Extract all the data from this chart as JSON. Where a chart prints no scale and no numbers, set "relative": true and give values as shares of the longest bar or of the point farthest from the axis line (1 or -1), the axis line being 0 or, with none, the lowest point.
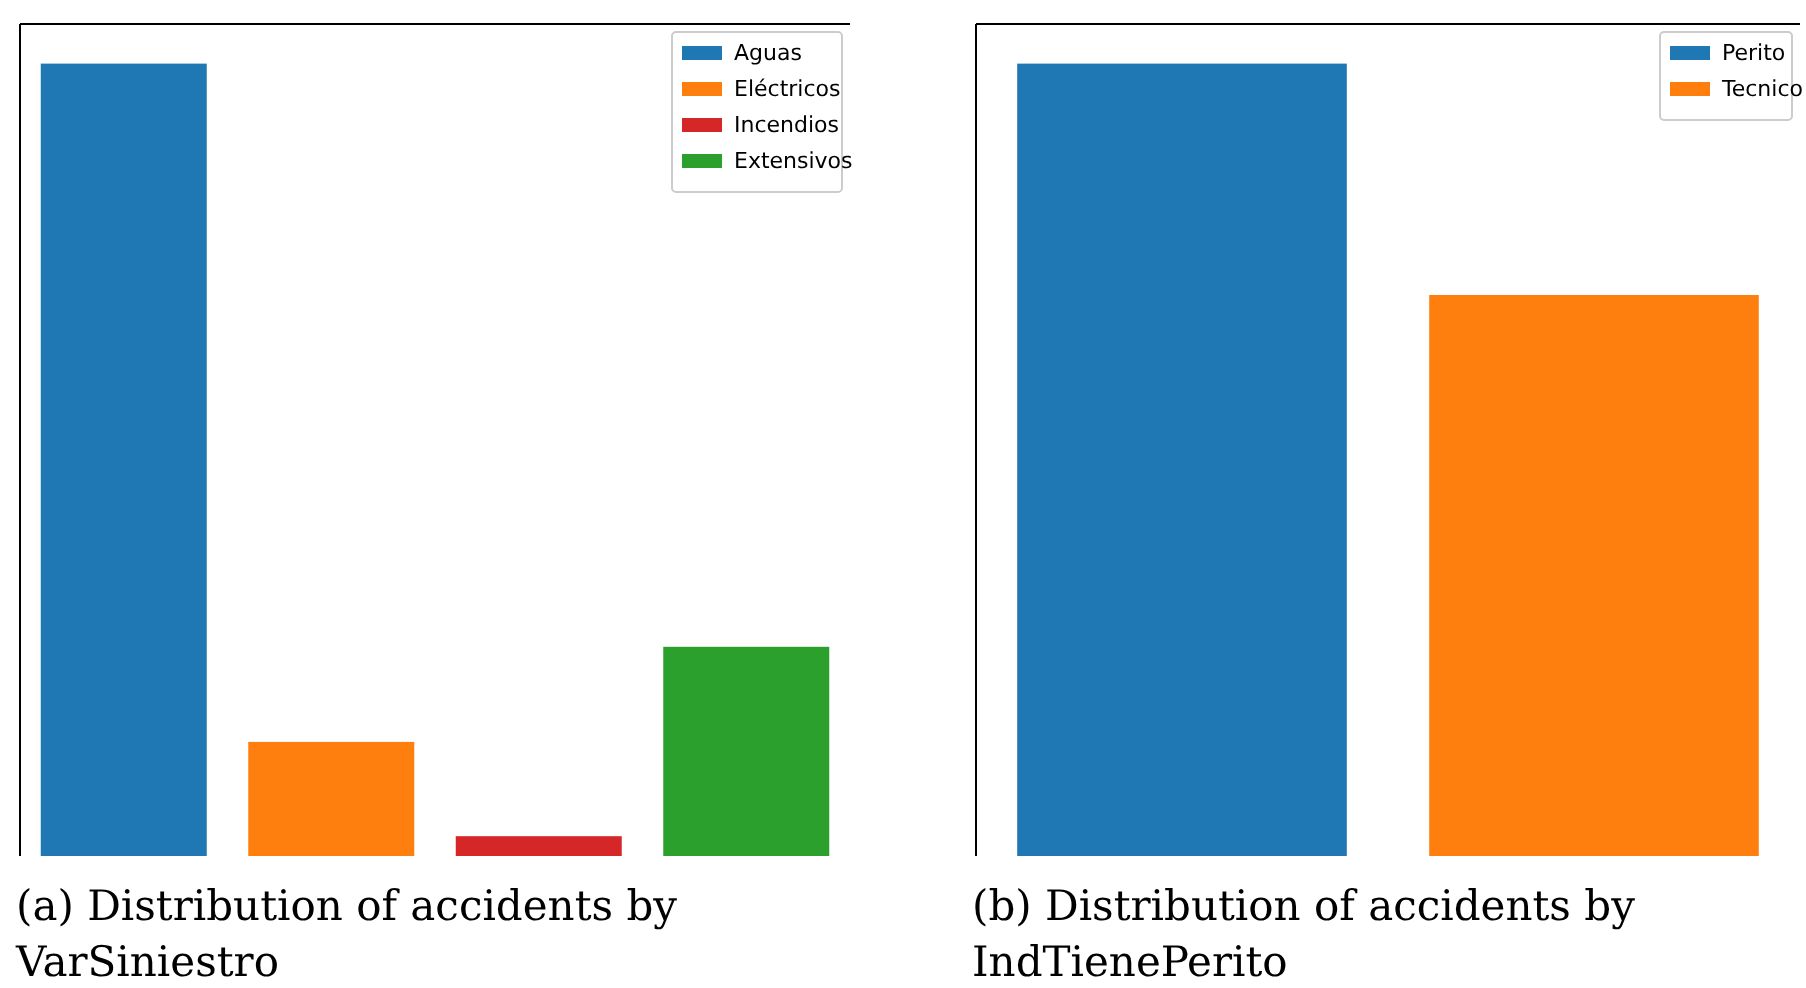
{
  "chart_data": [
    {
      "type": "bar",
      "relative": true,
      "title": "(a) Distribution of accidents by VarSiniestro",
      "categories": [
        null
      ],
      "legend": "top right",
      "series": [
        {
          "name": "Aguas",
          "color": "#1f77b4",
          "values": [
            1
          ]
        },
        {
          "name": "Eléctricos",
          "color": "#ff7f0e",
          "values": [
            0.144
          ]
        },
        {
          "name": "Incendios",
          "color": "#d62728",
          "values": [
            0.025
          ]
        },
        {
          "name": "Extensivos",
          "color": "#2ca02c",
          "values": [
            0.264
          ]
        }
      ]
    },
    {
      "type": "bar",
      "relative": true,
      "title": "(b) Distribution of accidents by IndTienePerito",
      "categories": [
        null
      ],
      "legend": "top right",
      "series": [
        {
          "name": "Perito",
          "color": "#1f77b4",
          "values": [
            1
          ]
        },
        {
          "name": "Tecnico",
          "color": "#ff7f0e",
          "values": [
            0.708
          ]
        }
      ]
    }
  ]
}
